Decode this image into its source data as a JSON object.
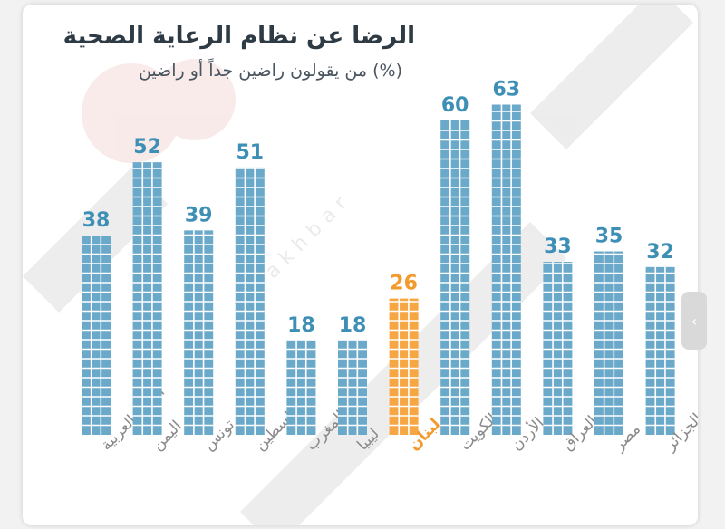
{
  "header": {
    "title": "الرضا عن نظام الرعاية الصحية",
    "subtitle": "(%) من يقولون راضين جداً أو راضين"
  },
  "watermark": {
    "text": "al-akhbar"
  },
  "colors": {
    "bar": "#6aa9c9",
    "bar_highlight": "#f7a644",
    "value": "#3d8fb6",
    "value_highlight": "#f39a2e",
    "label": "#8a8a8a",
    "label_highlight": "#f39a2e"
  },
  "chart_data": {
    "type": "bar",
    "categories": [
      "الدول العربية",
      "اليمن",
      "تونس",
      "فلسطين",
      "المغرب",
      "ليبيا",
      "لبنان",
      "الكويت",
      "الأردن",
      "العراق",
      "مصر",
      "الجزائر"
    ],
    "values": [
      38,
      52,
      39,
      51,
      18,
      18,
      26,
      60,
      63,
      33,
      35,
      32
    ],
    "highlight": "لبنان",
    "ylim": [
      0,
      70
    ],
    "grid": false,
    "legend": "none"
  },
  "scroll_handle": {
    "icon": "chevron-left-icon",
    "glyph": "‹"
  }
}
